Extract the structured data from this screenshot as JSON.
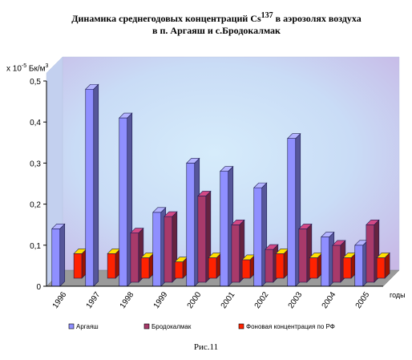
{
  "title": {
    "line1": "Динамика среднегодовых концентраций Cs",
    "sup": "137",
    "line1_end": " в аэрозолях воздуха",
    "line2": "в п. Аргаяш и с.Бродокалмак"
  },
  "y_unit": {
    "pre": "х 10",
    "exp": "-5",
    "mid": " Бк/м",
    "exp2": "3"
  },
  "caption": "Рис.11",
  "chart_data": {
    "type": "bar",
    "categories": [
      "1996",
      "1997",
      "1998",
      "1999",
      "2000",
      "2001",
      "2002",
      "2003",
      "2004",
      "2005"
    ],
    "xlabel": "годы",
    "ylabel": "х 10-5 Бк/м3",
    "ylim": [
      0,
      0.5
    ],
    "yticks": [
      "0",
      "0,1",
      "0,2",
      "0,3",
      "0,4",
      "0,5"
    ],
    "grid": false,
    "legend_position": "bottom",
    "series": [
      {
        "name": "Аргаяш",
        "color": "#8f8fff",
        "values": [
          0.14,
          0.48,
          0.41,
          0.18,
          0.3,
          0.28,
          0.24,
          0.36,
          0.12,
          0.1
        ]
      },
      {
        "name": "Бродокалмак",
        "color": "#a83a6a",
        "values": [
          0,
          0,
          0.12,
          0.16,
          0.21,
          0.14,
          0.08,
          0.13,
          0.09,
          0.14
        ]
      },
      {
        "name": "Фоновая концентрация по РФ",
        "color": "#ff2200",
        "values": [
          0.06,
          0.06,
          0.05,
          0.04,
          0.05,
          0.045,
          0.06,
          0.05,
          0.05,
          0.05
        ]
      }
    ]
  }
}
